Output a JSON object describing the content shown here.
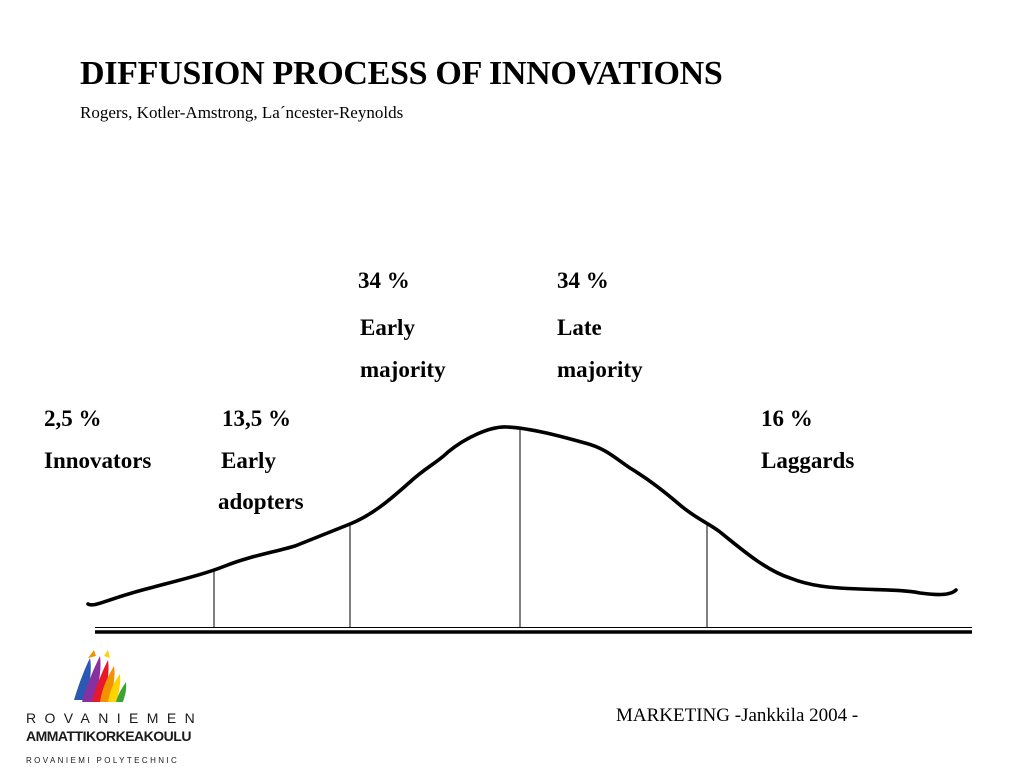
{
  "title": "DIFFUSION PROCESS OF INNOVATIONS",
  "subtitle": "Rogers, Kotler-Amstrong, La´ncester-Reynolds",
  "chart_data": {
    "type": "area",
    "grid": false,
    "segments": [
      {
        "percent": "2,5 %",
        "name": [
          "Innovators"
        ],
        "share": 2.5
      },
      {
        "percent": "13,5 %",
        "name": [
          "Early",
          "adopters"
        ],
        "share": 13.5
      },
      {
        "percent": "34 %",
        "name": [
          "Early",
          "majority"
        ],
        "share": 34
      },
      {
        "percent": "34 %",
        "name": [
          "Late",
          "majority"
        ],
        "share": 34
      },
      {
        "percent": "16 %",
        "name": [
          "Laggards"
        ],
        "share": 16
      }
    ]
  },
  "footer": "MARKETING -Jankkila 2004 -",
  "logo": {
    "line1": "ROVANIEMEN",
    "line2": "AMMATTIKORKEAKOULU",
    "line3": "ROVANIEMI POLYTECHNIC"
  }
}
